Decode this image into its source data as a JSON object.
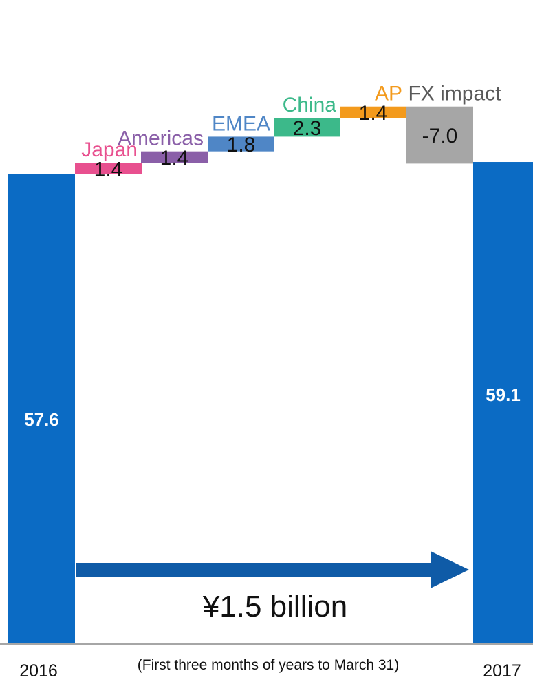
{
  "chart_data": {
    "type": "waterfall",
    "title": "",
    "note": "(First three months of years to March 31)",
    "change_label": "¥1.5 billion",
    "unit": "",
    "ylim": [
      0,
      79
    ],
    "start": {
      "category": "2016",
      "value": 57.6,
      "label": "57.6",
      "color": "#0b6bc4"
    },
    "end": {
      "category": "2017",
      "value": 59.1,
      "label": "59.1",
      "color": "#0b6bc4"
    },
    "steps": [
      {
        "name": "Japan",
        "value": 1.4,
        "label": "1.4",
        "color": "#e8508f",
        "name_color": "#e8508f"
      },
      {
        "name": "Americas",
        "value": 1.4,
        "label": "1.4",
        "color": "#8a5fa8",
        "name_color": "#8a5fa8"
      },
      {
        "name": "EMEA",
        "value": 1.8,
        "label": "1.8",
        "color": "#4f86c6",
        "name_color": "#4f86c6"
      },
      {
        "name": "China",
        "value": 2.3,
        "label": "2.3",
        "color": "#3cb98a",
        "name_color": "#3cb98a"
      },
      {
        "name": "AP",
        "value": 1.4,
        "label": "1.4",
        "color": "#f39a1c",
        "name_color": "#f39a1c"
      },
      {
        "name": "FX impact",
        "value": -7.0,
        "label": "-7.0",
        "color": "#a6a6a6",
        "name_color": "#595959"
      }
    ],
    "arrow_color": "#0f5ba7",
    "baseline_color": "#a6a6a6"
  }
}
